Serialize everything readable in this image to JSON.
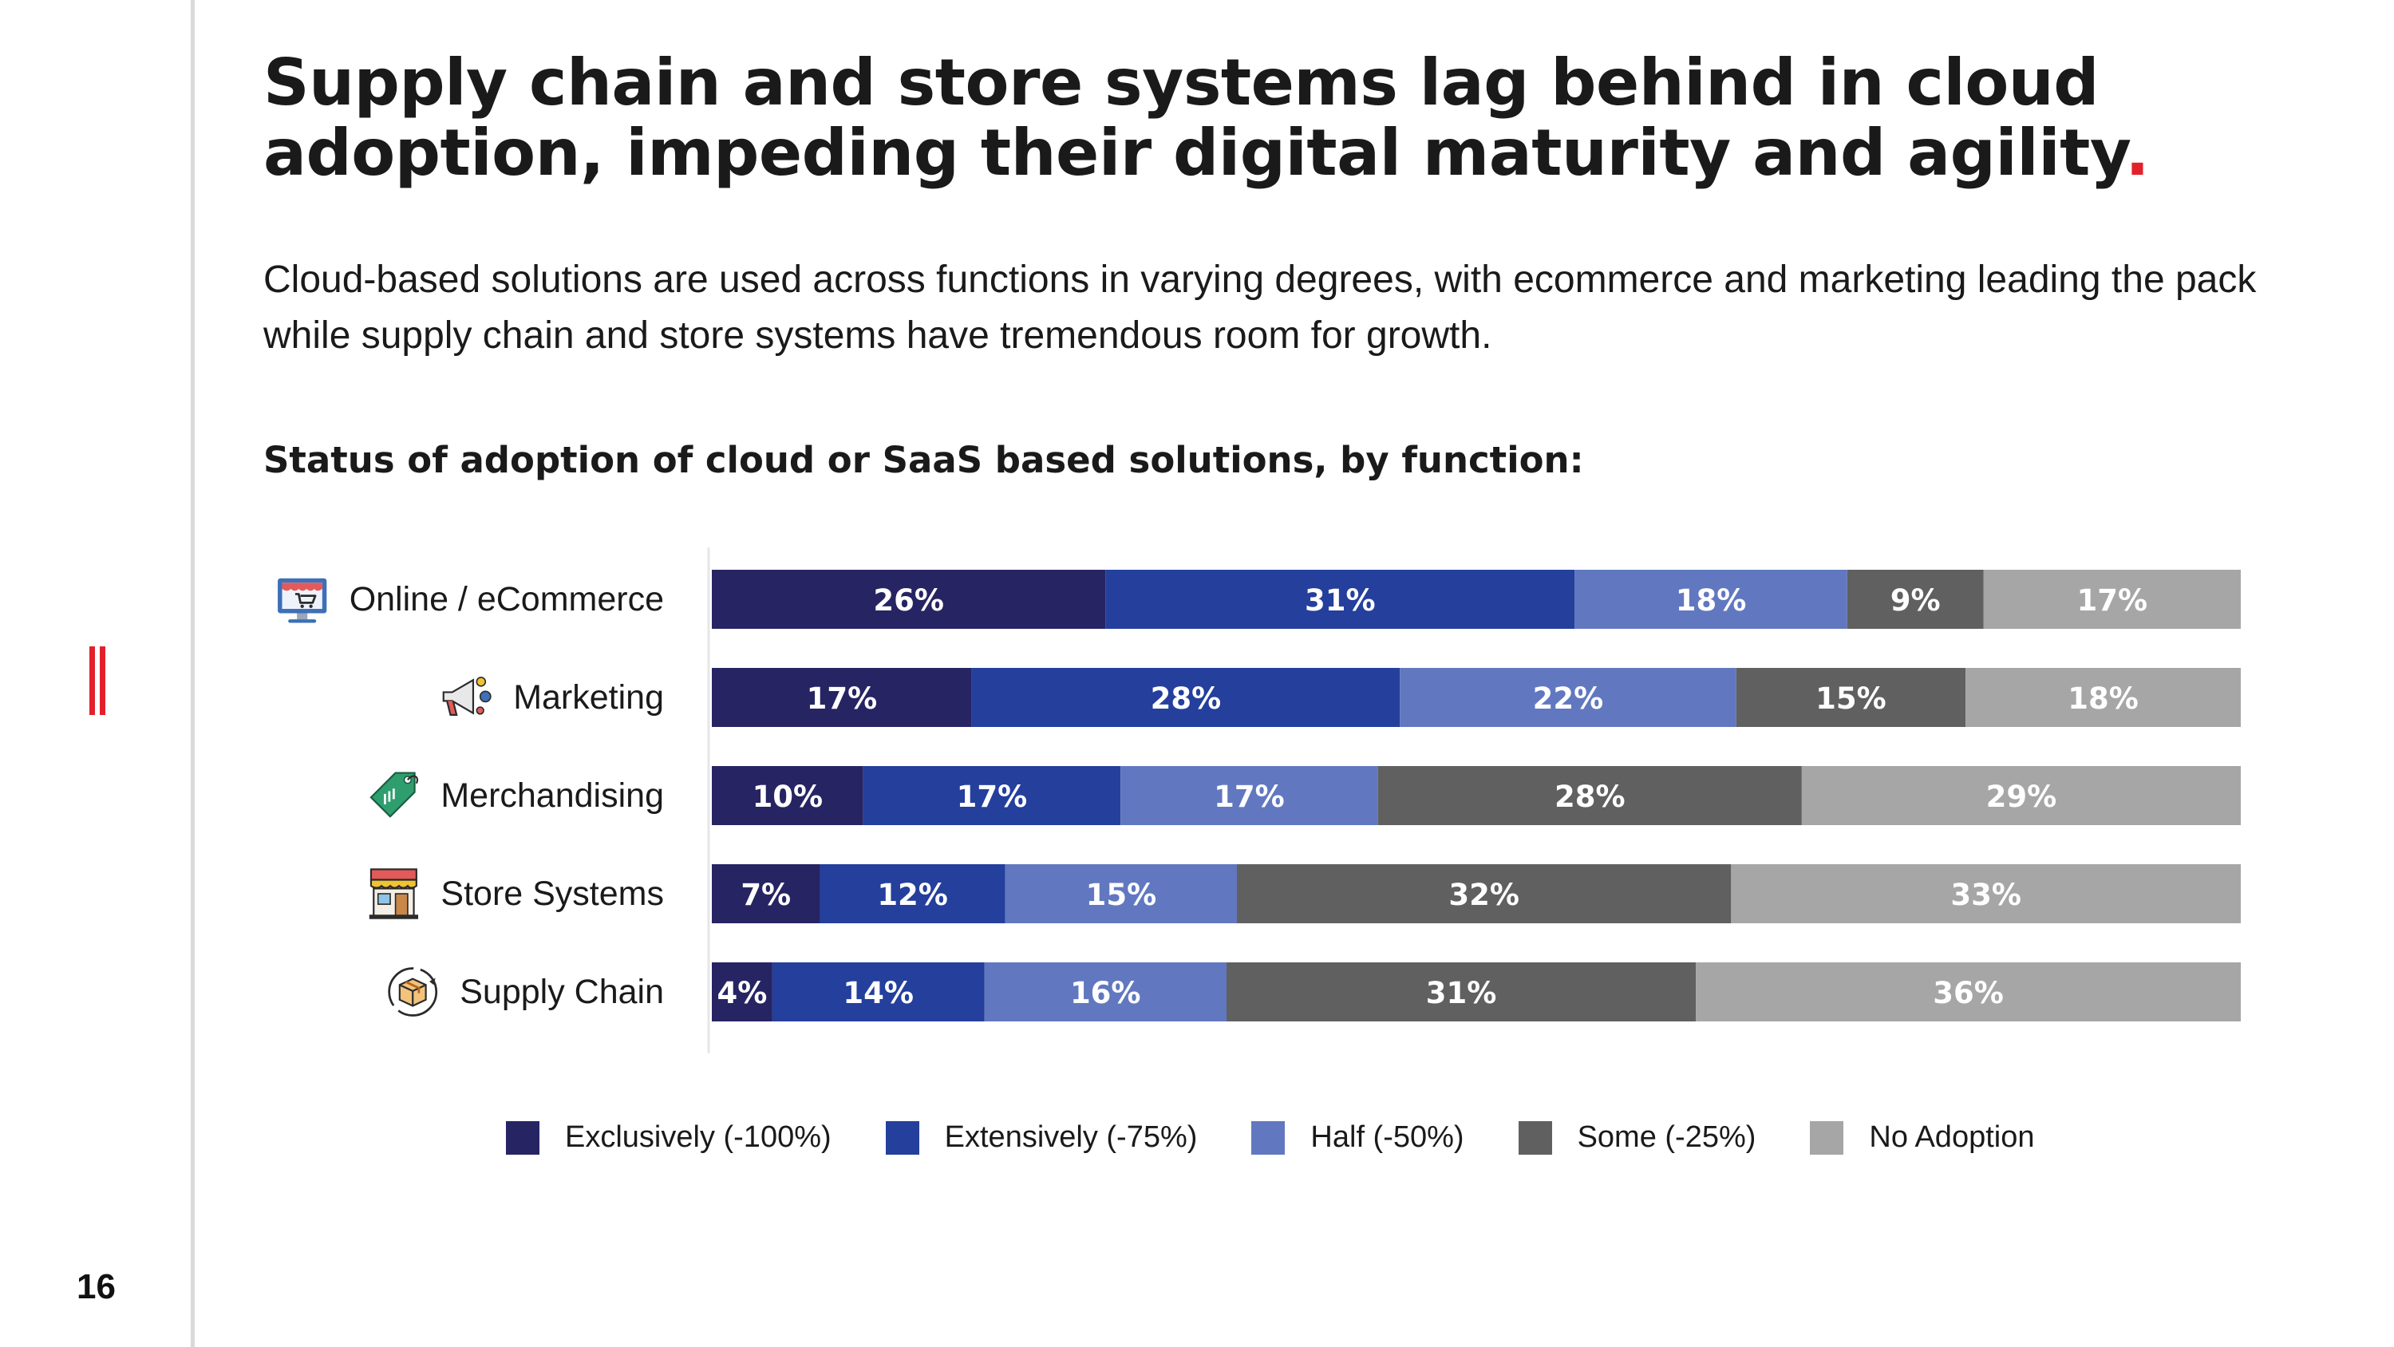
{
  "page": {
    "title": "Supply chain and store systems lag behind in cloud adoption, impeding their digital maturity and agility",
    "title_end": ".",
    "subtitle": "Cloud-based solutions are used across functions in varying degrees, with ecommerce and marketing leading the pack while supply chain and store systems have tremendous room for growth.",
    "page_number": "16"
  },
  "chart_data": {
    "type": "bar",
    "orientation": "horizontal",
    "stacked": true,
    "title": "Status of adoption of cloud or SaaS based solutions, by function:",
    "categories": [
      "Online / eCommerce",
      "Marketing",
      "Merchandising",
      "Store Systems",
      "Supply Chain"
    ],
    "category_icons": [
      "shop-icon",
      "megaphone-icon",
      "price-tag-icon",
      "store-icon",
      "package-icon"
    ],
    "value_suffix": "%",
    "series": [
      {
        "name": "Exclusively (-100%)",
        "color": "#262462",
        "values": [
          26,
          17,
          10,
          7,
          4
        ]
      },
      {
        "name": "Extensively (-75%)",
        "color": "#243f9c",
        "values": [
          31,
          28,
          17,
          12,
          14
        ]
      },
      {
        "name": "Half (-50%)",
        "color": "#6178c0",
        "values": [
          18,
          22,
          17,
          15,
          16
        ]
      },
      {
        "name": "Some (-25%)",
        "color": "#606060",
        "values": [
          9,
          15,
          28,
          32,
          31
        ]
      },
      {
        "name": "No Adoption",
        "color": "#a6a6a6",
        "values": [
          17,
          18,
          29,
          33,
          36
        ]
      }
    ],
    "legend_position": "bottom",
    "grid": false
  },
  "colors": {
    "accent": "#e3212b",
    "label_text": "#ffffff"
  }
}
